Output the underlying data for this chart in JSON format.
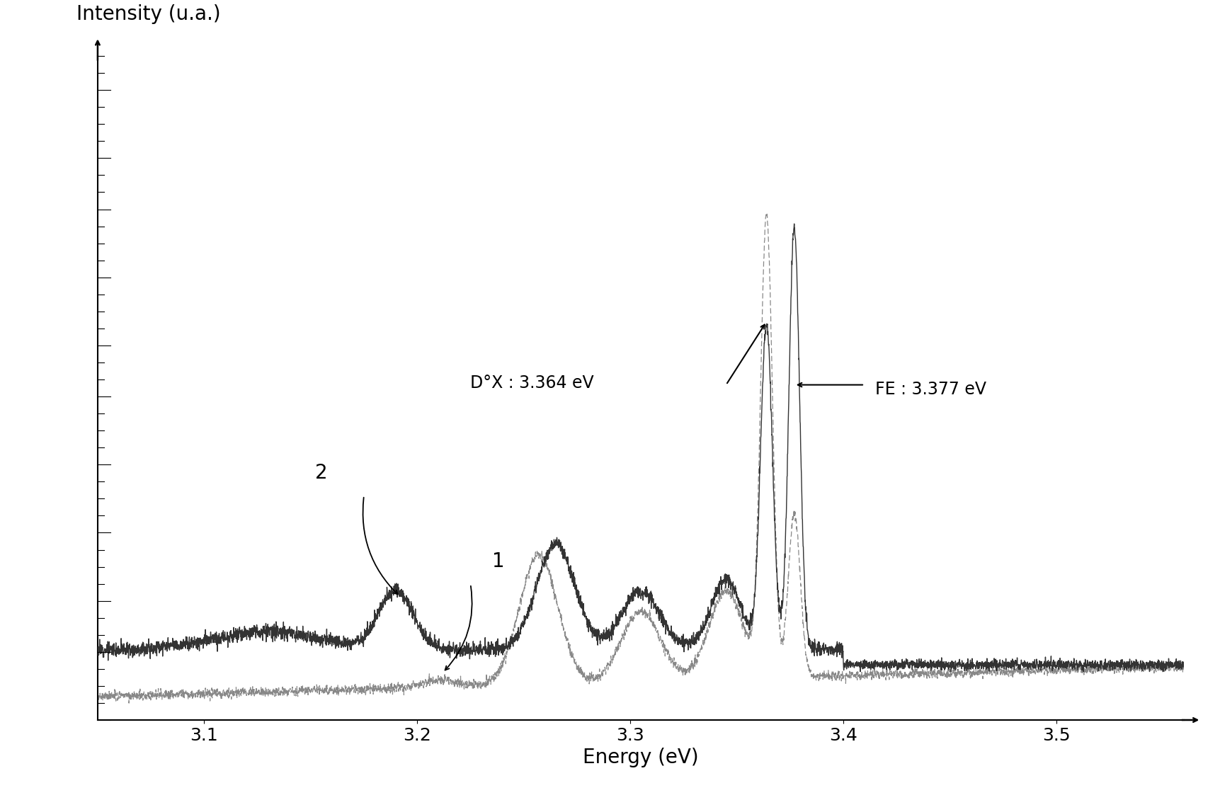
{
  "xlabel": "Energy (eV)",
  "ylabel": "Intensity (u.a.)",
  "xlim": [
    3.05,
    3.56
  ],
  "ylim": [
    0,
    1.05
  ],
  "x_ticks": [
    3.1,
    3.2,
    3.3,
    3.4,
    3.5
  ],
  "annotation_D0X": "D°X : 3.364 eV",
  "annotation_FE": "FE : 3.377 eV",
  "label_1": "1",
  "label_2": "2",
  "peak_D0X": 3.364,
  "peak_FE": 3.377,
  "background_color": "#ffffff",
  "curve_solid_color": "#333333",
  "curve_dashed_color": "#888888",
  "linewidth_solid": 1.0,
  "linewidth_dashed": 0.9,
  "fontsize_axis_label": 20,
  "fontsize_tick": 18,
  "fontsize_annotation": 17,
  "fontsize_label": 20
}
